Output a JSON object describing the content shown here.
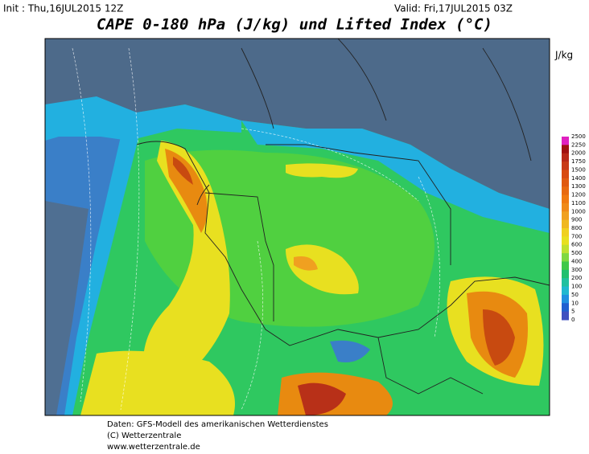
{
  "header": {
    "init": "Init : Thu,16JUL2015 12Z",
    "valid": "Valid: Fri,17JUL2015 03Z",
    "title": "CAPE 0-180 hPa (J/kg) und Lifted Index (°C)"
  },
  "legend": {
    "unit": "J/kg",
    "levels": [
      2500,
      2250,
      2000,
      1750,
      1500,
      1400,
      1300,
      1200,
      1100,
      1000,
      900,
      800,
      700,
      600,
      500,
      400,
      300,
      200,
      100,
      50,
      10,
      5,
      0
    ]
  },
  "footer": [
    "Daten: GFS-Modell des amerikanischen Wetterdienstes",
    "(C) Wetterzentrale",
    "www.wetterzentrale.de"
  ]
}
